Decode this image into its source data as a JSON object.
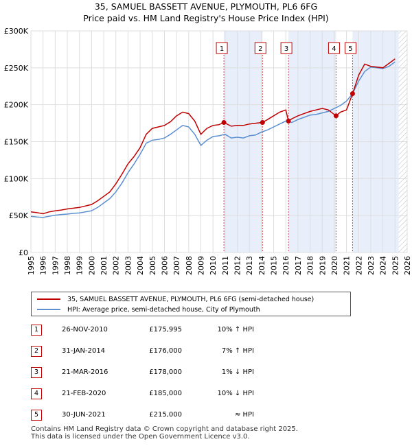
{
  "title_line1": "35, SAMUEL BASSETT AVENUE, PLYMOUTH, PL6 6FG",
  "title_line2": "Price paid vs. HM Land Registry's House Price Index (HPI)",
  "legend": {
    "property_label": "35, SAMUEL BASSETT AVENUE, PLYMOUTH, PL6 6FG (semi-detached house)",
    "hpi_label": "HPI: Average price, semi-detached house, City of Plymouth"
  },
  "colors": {
    "property_line": "#c00000",
    "hpi_line": "#5b8fd0",
    "highlight_band": "#e8eefa",
    "future_hatch": "#bbbbbb",
    "marker_box": "#c00000"
  },
  "transactions": [
    {
      "num": "1",
      "date": "26-NOV-2010",
      "price": "£175,995",
      "hpi_rel": "10% ↑ HPI"
    },
    {
      "num": "2",
      "date": "31-JAN-2014",
      "price": "£176,000",
      "hpi_rel": "7% ↑ HPI"
    },
    {
      "num": "3",
      "date": "21-MAR-2016",
      "price": "£178,000",
      "hpi_rel": "1% ↓ HPI"
    },
    {
      "num": "4",
      "date": "21-FEB-2020",
      "price": "£185,000",
      "hpi_rel": "10% ↓ HPI"
    },
    {
      "num": "5",
      "date": "30-JUN-2021",
      "price": "£215,000",
      "hpi_rel": "≈ HPI"
    }
  ],
  "footer": {
    "line1": "Contains HM Land Registry data © Crown copyright and database right 2025.",
    "line2": "This data is licensed under the Open Government Licence v3.0."
  },
  "chart_data": {
    "type": "line",
    "title": "Price paid vs. HM Land Registry's House Price Index (HPI)",
    "x_range": [
      1995,
      2026
    ],
    "y_range": [
      0,
      300000
    ],
    "x_ticks": [
      "1995",
      "1996",
      "1997",
      "1998",
      "1999",
      "2000",
      "2001",
      "2002",
      "2003",
      "2004",
      "2005",
      "2006",
      "2007",
      "2008",
      "2009",
      "2010",
      "2011",
      "2012",
      "2013",
      "2014",
      "2015",
      "2016",
      "2017",
      "2018",
      "2019",
      "2020",
      "2021",
      "2022",
      "2023",
      "2024",
      "2025",
      "2026"
    ],
    "y_ticks": [
      {
        "value": 0,
        "label": "£0"
      },
      {
        "value": 50000,
        "label": "£50K"
      },
      {
        "value": 100000,
        "label": "£100K"
      },
      {
        "value": 150000,
        "label": "£150K"
      },
      {
        "value": 200000,
        "label": "£200K"
      },
      {
        "value": 250000,
        "label": "£250K"
      },
      {
        "value": 300000,
        "label": "£300K"
      }
    ],
    "grid": true,
    "legend_position": "bottom",
    "shaded_periods": [
      [
        2010.9,
        2014.08
      ],
      [
        2016.22,
        2020.14
      ],
      [
        2021.5,
        2025.3
      ]
    ],
    "future_hatch_from": 2025.3,
    "sale_points": [
      {
        "label": "1",
        "x": 2010.9,
        "y": 175995
      },
      {
        "label": "2",
        "x": 2014.08,
        "y": 176000
      },
      {
        "label": "3",
        "x": 2016.22,
        "y": 178000
      },
      {
        "label": "4",
        "x": 2020.14,
        "y": 185000
      },
      {
        "label": "5",
        "x": 2021.5,
        "y": 215000
      }
    ],
    "series": [
      {
        "name": "HPI: Average price, semi-detached house, City of Plymouth",
        "x": [
          1995,
          1995.5,
          1996,
          1996.5,
          1997,
          1997.5,
          1998,
          1998.5,
          1999,
          1999.5,
          2000,
          2000.5,
          2001,
          2001.5,
          2002,
          2002.5,
          2003,
          2003.5,
          2004,
          2004.5,
          2005,
          2005.5,
          2006,
          2006.5,
          2007,
          2007.5,
          2008,
          2008.5,
          2009,
          2009.5,
          2010,
          2010.5,
          2011,
          2011.5,
          2012,
          2012.5,
          2013,
          2013.5,
          2014,
          2014.5,
          2015,
          2015.5,
          2016,
          2016.5,
          2017,
          2017.5,
          2018,
          2018.5,
          2019,
          2019.5,
          2020,
          2020.5,
          2021,
          2021.5,
          2022,
          2022.5,
          2023,
          2023.5,
          2024,
          2024.5,
          2025
        ],
        "y": [
          49000,
          48000,
          47500,
          49000,
          50500,
          51500,
          52000,
          53000,
          53500,
          55000,
          56500,
          61000,
          67000,
          73000,
          82000,
          94000,
          108000,
          120000,
          133000,
          148000,
          152000,
          153000,
          155000,
          160000,
          166000,
          172000,
          170000,
          160000,
          145000,
          152000,
          157000,
          158000,
          160000,
          155000,
          156000,
          155000,
          158000,
          159000,
          163000,
          166000,
          170000,
          174000,
          178000,
          176000,
          180000,
          183000,
          186000,
          187000,
          189000,
          191000,
          195000,
          199000,
          205000,
          215000,
          232000,
          245000,
          251000,
          250000,
          249000,
          252000,
          258000
        ]
      },
      {
        "name": "35, SAMUEL BASSETT AVENUE, PLYMOUTH, PL6 6FG (semi-detached house)",
        "x": [
          1995,
          1995.5,
          1996,
          1996.5,
          1997,
          1997.5,
          1998,
          1998.5,
          1999,
          1999.5,
          2000,
          2000.5,
          2001,
          2001.5,
          2002,
          2002.5,
          2003,
          2003.5,
          2004,
          2004.5,
          2005,
          2005.5,
          2006,
          2006.5,
          2007,
          2007.5,
          2008,
          2008.5,
          2009,
          2009.5,
          2010,
          2010.5,
          2010.9,
          2011.5,
          2012,
          2012.5,
          2013,
          2013.5,
          2014.08,
          2014.5,
          2015,
          2015.5,
          2016,
          2016.22,
          2016.5,
          2017,
          2017.5,
          2018,
          2018.5,
          2019,
          2019.5,
          2020.14,
          2020.5,
          2021,
          2021.5,
          2022,
          2022.5,
          2023,
          2023.5,
          2024,
          2024.5,
          2025
        ],
        "y": [
          55000,
          54000,
          52500,
          55000,
          56500,
          57500,
          59000,
          60000,
          61000,
          63000,
          65000,
          70000,
          76000,
          82000,
          93000,
          106000,
          120000,
          130000,
          142000,
          160000,
          168000,
          170000,
          172000,
          177000,
          185000,
          190000,
          188000,
          178000,
          160000,
          168000,
          172000,
          173000,
          175995,
          171000,
          172000,
          172000,
          174000,
          175000,
          176000,
          180000,
          185000,
          190000,
          193000,
          178000,
          181000,
          185000,
          188000,
          191000,
          193000,
          195000,
          193000,
          185000,
          190000,
          193000,
          215000,
          240000,
          255000,
          252000,
          251000,
          250000,
          256000,
          262000
        ]
      }
    ]
  }
}
